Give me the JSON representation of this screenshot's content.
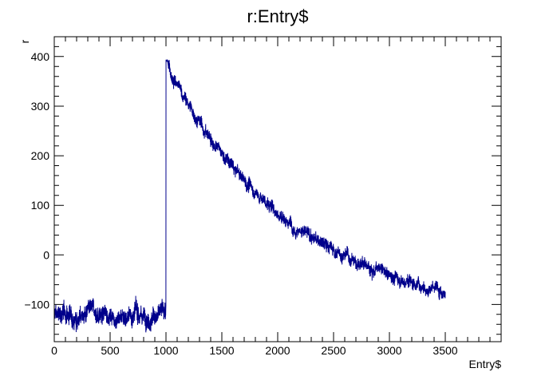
{
  "chart_data": {
    "type": "line",
    "title": "r:Entry$",
    "xlabel": "Entry$",
    "ylabel": "r",
    "xlim": [
      0,
      4000
    ],
    "ylim": [
      -175,
      440
    ],
    "x_ticks": [
      0,
      500,
      1000,
      1500,
      2000,
      2500,
      3000,
      3500
    ],
    "y_ticks": [
      -100,
      0,
      100,
      200,
      300,
      400
    ],
    "x_tick_labels": [
      "0",
      "500",
      "1000",
      "1500",
      "2000",
      "2500",
      "3000",
      "3500"
    ],
    "y_tick_labels": [
      "−100",
      "0",
      "100",
      "200",
      "300",
      "400"
    ],
    "grid": false,
    "legend": "none",
    "series": [
      {
        "color": "#00008b",
        "x_range": [
          0,
          3500
        ],
        "samples": 3500,
        "baseline_level": -120,
        "baseline_noise": 20,
        "step_at": 1000,
        "peak_value": 385,
        "decay_tau": 1150,
        "decay_asymptote": -130,
        "decay_noise": 15,
        "end_value": -45,
        "min_value": -160,
        "max_value": 393
      }
    ]
  }
}
